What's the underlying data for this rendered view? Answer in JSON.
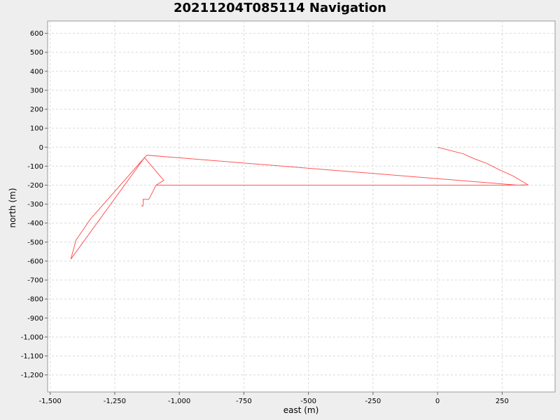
{
  "chart_data": {
    "type": "line",
    "title": "20211204T085114 Navigation",
    "xlabel": "east (m)",
    "ylabel": "north (m)",
    "xlim": [
      -1510,
      455
    ],
    "ylim": [
      -1290,
      665
    ],
    "grid": true,
    "x_ticks": [
      -1500,
      -1250,
      -1000,
      -750,
      -500,
      -250,
      0,
      250
    ],
    "x_tick_labels": [
      "-1,500",
      "-1,250",
      "-1,000",
      "-750",
      "-500",
      "-250",
      "0",
      "250"
    ],
    "y_ticks": [
      600,
      500,
      400,
      300,
      200,
      100,
      0,
      -100,
      -200,
      -300,
      -400,
      -500,
      -600,
      -700,
      -800,
      -900,
      -1000,
      -1100,
      -1200
    ],
    "y_tick_labels": [
      "600",
      "500",
      "400",
      "300",
      "200",
      "100",
      "0",
      "-100",
      "-200",
      "-300",
      "-400",
      "-500",
      "-600",
      "-700",
      "-800",
      "-900",
      "-1,000",
      "-1,100",
      "-1,200"
    ],
    "series": [
      {
        "color": "#ff5555",
        "x": [
          0,
          100,
          140,
          190,
          240,
          290,
          350,
          310,
          -1125,
          -1135,
          -1420,
          -1400,
          -1345,
          -1135,
          -1060,
          -1090,
          -1118,
          -1140,
          -1140,
          -1145,
          -1140
        ],
        "y": [
          0,
          -35,
          -60,
          -85,
          -120,
          -150,
          -198,
          -200,
          -42,
          -55,
          -590,
          -490,
          -380,
          -55,
          -175,
          -200,
          -275,
          -275,
          -305,
          -310,
          -310
        ]
      },
      {
        "color": "#ff5555",
        "x": [
          -1090,
          340
        ],
        "y": [
          -200,
          -200
        ]
      }
    ]
  }
}
